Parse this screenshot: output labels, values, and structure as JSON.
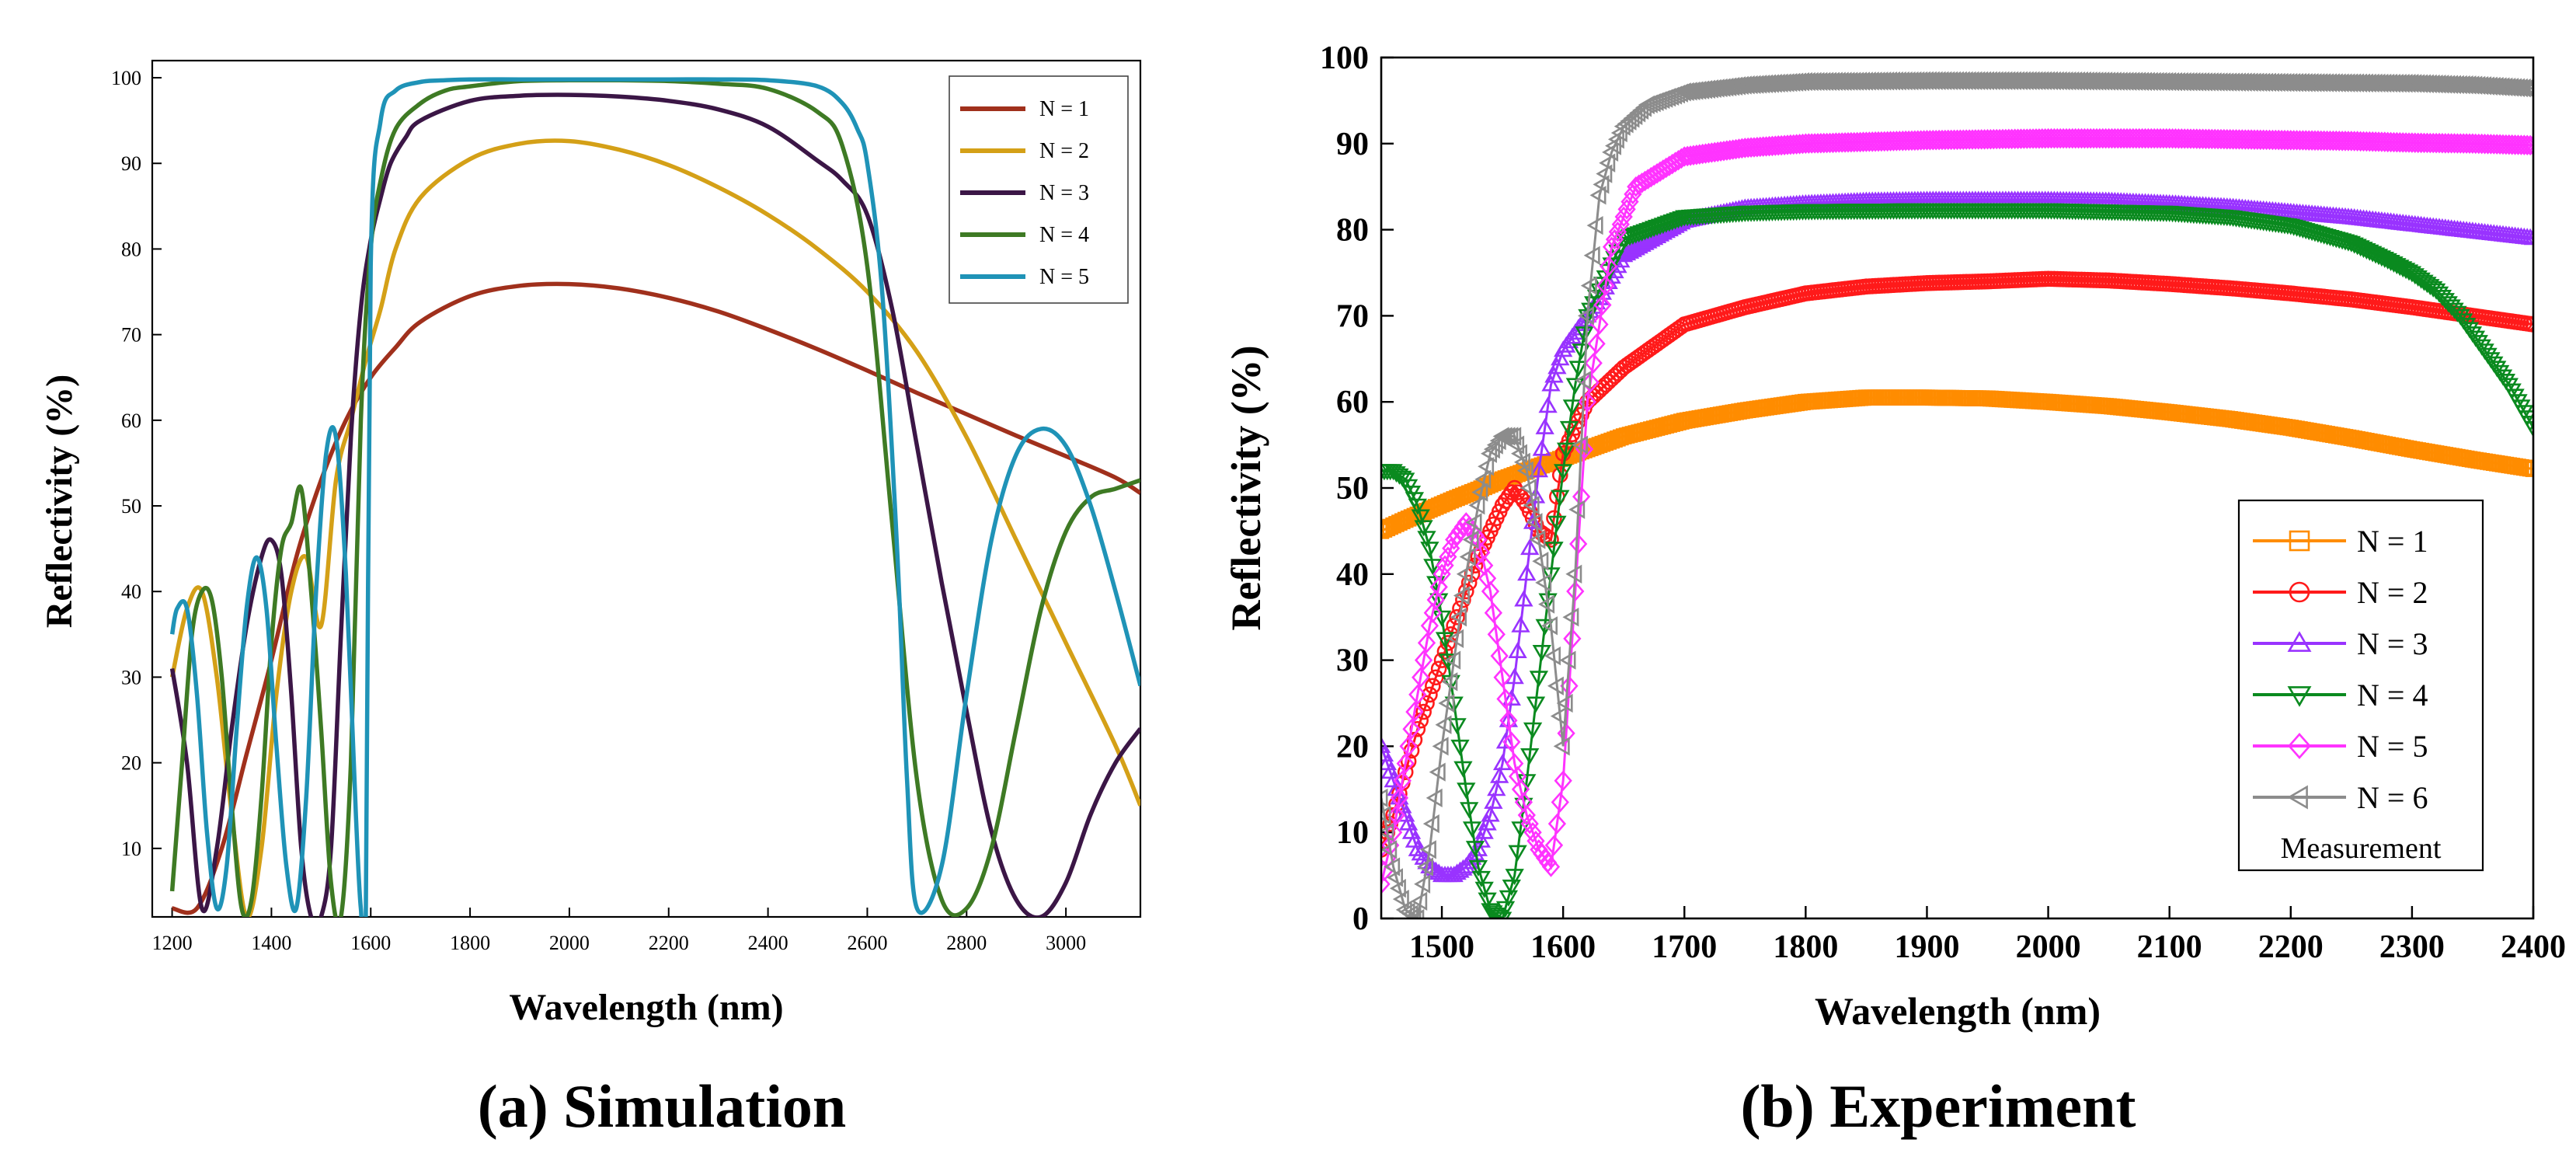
{
  "chart_data": [
    {
      "type": "line",
      "panel_label": "(a) Simulation",
      "xlabel": "Wavelength (nm)",
      "ylabel": "Reflectivity (%)",
      "xlim": [
        1160,
        3150
      ],
      "ylim": [
        2,
        102
      ],
      "xticks": [
        1200,
        1400,
        1600,
        1800,
        2000,
        2200,
        2400,
        2600,
        2800,
        3000
      ],
      "yticks": [
        10,
        20,
        30,
        40,
        50,
        60,
        70,
        80,
        90,
        100
      ],
      "grid": false,
      "legend_position": "top-right",
      "series": [
        {
          "name": "N = 1",
          "color": "#a0301c",
          "x": [
            1200,
            1250,
            1300,
            1350,
            1400,
            1450,
            1500,
            1550,
            1600,
            1650,
            1700,
            1800,
            1900,
            2000,
            2100,
            2200,
            2300,
            2400,
            2500,
            2600,
            2700,
            2800,
            2900,
            3000,
            3100,
            3150
          ],
          "y": [
            3,
            3,
            10,
            21,
            32,
            44,
            53,
            60,
            65,
            68.5,
            71.5,
            74.5,
            75.7,
            75.9,
            75.4,
            74.3,
            72.7,
            70.6,
            68.3,
            65.8,
            63.2,
            60.7,
            58.2,
            55.8,
            53.3,
            51.5
          ]
        },
        {
          "name": "N = 2",
          "color": "#d4a017",
          "x": [
            1200,
            1230,
            1260,
            1290,
            1320,
            1350,
            1380,
            1410,
            1440,
            1470,
            1500,
            1530,
            1560,
            1590,
            1620,
            1650,
            1700,
            1800,
            1900,
            2000,
            2100,
            2200,
            2300,
            2400,
            2500,
            2600,
            2700,
            2800,
            2900,
            3000,
            3100,
            3150
          ],
          "y": [
            30,
            38,
            40,
            30,
            14,
            2,
            10,
            28,
            40,
            44,
            36,
            53,
            60,
            67,
            73,
            80,
            86,
            90.5,
            92.3,
            92.6,
            91.6,
            89.8,
            87.2,
            84,
            80,
            75,
            68,
            58,
            46,
            34,
            22,
            15
          ]
        },
        {
          "name": "N = 3",
          "color": "#3b1646",
          "x": [
            1200,
            1230,
            1260,
            1290,
            1320,
            1350,
            1380,
            1400,
            1420,
            1440,
            1460,
            1480,
            1500,
            1520,
            1540,
            1560,
            1580,
            1600,
            1620,
            1640,
            1670,
            1700,
            1800,
            1900,
            2000,
            2100,
            2200,
            2300,
            2400,
            2500,
            2550,
            2600,
            2650,
            2700,
            2750,
            2800,
            2850,
            2900,
            2950,
            3000,
            3050,
            3100,
            3150
          ],
          "y": [
            31,
            20,
            3,
            10,
            24,
            36,
            44,
            46,
            42,
            28,
            10,
            2,
            2,
            10,
            35,
            58,
            73,
            81,
            86,
            90,
            93,
            95,
            97.3,
            97.9,
            98,
            97.8,
            97.3,
            96.3,
            94.3,
            90.3,
            88,
            84,
            73,
            57,
            41,
            26,
            12,
            4,
            2,
            6,
            14,
            20,
            24
          ]
        },
        {
          "name": "N = 4",
          "color": "#3e7a24",
          "x": [
            1200,
            1220,
            1240,
            1260,
            1280,
            1300,
            1320,
            1340,
            1360,
            1380,
            1400,
            1420,
            1440,
            1460,
            1480,
            1500,
            1520,
            1540,
            1560,
            1580,
            1600,
            1620,
            1650,
            1700,
            1750,
            1800,
            1900,
            2000,
            2100,
            2200,
            2300,
            2400,
            2500,
            2550,
            2600,
            2650,
            2700,
            2750,
            2800,
            2850,
            2900,
            2950,
            3000,
            3050,
            3100,
            3150
          ],
          "y": [
            5,
            20,
            35,
            40,
            39,
            30,
            15,
            3,
            4,
            16,
            34,
            45,
            48,
            52,
            40,
            24,
            6,
            2,
            20,
            60,
            80,
            88,
            94,
            97,
            98.5,
            99,
            99.6,
            99.7,
            99.7,
            99.6,
            99.3,
            98.7,
            96,
            92,
            78,
            48,
            18,
            4,
            3,
            10,
            24,
            38,
            47,
            51,
            52,
            53
          ]
        },
        {
          "name": "N = 5",
          "color": "#1f93b7",
          "x": [
            1200,
            1210,
            1230,
            1250,
            1270,
            1290,
            1310,
            1330,
            1350,
            1370,
            1390,
            1410,
            1430,
            1450,
            1470,
            1490,
            1510,
            1530,
            1550,
            1570,
            1580,
            1590,
            1600,
            1620,
            1650,
            1700,
            1750,
            1800,
            1900,
            2000,
            2100,
            2200,
            2300,
            2400,
            2500,
            2550,
            2580,
            2600,
            2630,
            2660,
            2680,
            2700,
            2750,
            2800,
            2850,
            2900,
            2950,
            3000,
            3050,
            3100,
            3150
          ],
          "y": [
            35,
            38,
            38,
            28,
            12,
            3,
            8,
            24,
            38,
            44,
            38,
            22,
            8,
            3,
            16,
            40,
            56,
            58,
            42,
            14,
            3,
            2,
            78,
            95,
            98.5,
            99.5,
            99.7,
            99.8,
            99.8,
            99.8,
            99.8,
            99.8,
            99.8,
            99.7,
            99,
            97,
            94,
            90,
            75,
            45,
            18,
            3,
            8,
            28,
            46,
            56,
            59,
            57,
            50,
            40,
            29
          ]
        }
      ]
    },
    {
      "type": "scatter",
      "panel_label": "(b) Experiment",
      "xlabel": "Wavelength (nm)",
      "ylabel": "Reflectivity (%)",
      "xlim": [
        1450,
        2400
      ],
      "ylim": [
        0,
        100
      ],
      "xticks": [
        1500,
        1600,
        1700,
        1800,
        1900,
        2000,
        2100,
        2200,
        2300,
        2400
      ],
      "yticks": [
        0,
        10,
        20,
        30,
        40,
        50,
        60,
        70,
        80,
        90,
        100
      ],
      "grid": false,
      "legend_position": "bottom-right",
      "legend_note": "Measurement",
      "series": [
        {
          "name": "N = 1",
          "color": "#ff8c00",
          "marker": "square",
          "x": [
            1450,
            1470,
            1490,
            1510,
            1530,
            1550,
            1570,
            1590,
            1620,
            1650,
            1700,
            1750,
            1800,
            1850,
            1900,
            1950,
            2000,
            2050,
            2100,
            2150,
            2200,
            2250,
            2300,
            2350,
            2400
          ],
          "y": [
            45,
            46.3,
            47.5,
            48.7,
            49.8,
            51,
            52,
            53,
            54.5,
            56,
            57.8,
            59,
            60,
            60.5,
            60.5,
            60.4,
            60,
            59.5,
            58.8,
            58,
            57,
            55.8,
            54.5,
            53.3,
            52.2
          ]
        },
        {
          "name": "N = 2",
          "color": "#ff1a1a",
          "marker": "circle",
          "x": [
            1450,
            1460,
            1470,
            1480,
            1490,
            1500,
            1510,
            1520,
            1530,
            1540,
            1550,
            1560,
            1570,
            1580,
            1590,
            1600,
            1620,
            1650,
            1700,
            1750,
            1800,
            1850,
            1900,
            1950,
            2000,
            2050,
            2100,
            2150,
            2200,
            2250,
            2300,
            2350,
            2400
          ],
          "y": [
            8,
            12,
            17,
            22,
            26,
            30,
            34,
            38,
            42,
            45,
            48,
            50,
            48,
            45,
            44,
            54,
            60,
            64,
            69,
            71,
            72.6,
            73.4,
            73.8,
            74,
            74.3,
            74.1,
            73.7,
            73.2,
            72.6,
            71.9,
            71,
            70,
            69
          ]
        },
        {
          "name": "N = 3",
          "color": "#9933ff",
          "marker": "triangle-up",
          "x": [
            1450,
            1460,
            1470,
            1480,
            1490,
            1500,
            1510,
            1520,
            1530,
            1540,
            1550,
            1560,
            1570,
            1580,
            1590,
            1600,
            1610,
            1630,
            1650,
            1700,
            1750,
            1800,
            1850,
            1900,
            1950,
            2000,
            2050,
            2100,
            2150,
            2200,
            2250,
            2300,
            2350,
            2400
          ],
          "y": [
            20,
            16,
            12,
            8,
            6,
            5,
            5,
            6,
            8,
            12,
            18,
            28,
            40,
            52,
            62,
            66,
            68,
            72,
            77,
            81,
            82.5,
            83,
            83.3,
            83.4,
            83.4,
            83.4,
            83.3,
            83,
            82.6,
            82,
            81.4,
            80.6,
            79.8,
            79
          ]
        },
        {
          "name": "N = 4",
          "color": "#0a8a1f",
          "marker": "triangle-down",
          "x": [
            1450,
            1460,
            1470,
            1480,
            1490,
            1500,
            1510,
            1520,
            1530,
            1540,
            1550,
            1560,
            1570,
            1580,
            1590,
            1600,
            1610,
            1620,
            1650,
            1700,
            1750,
            1800,
            1900,
            2000,
            2100,
            2150,
            2200,
            2250,
            2280,
            2300,
            2320,
            2340,
            2360,
            2380,
            2400
          ],
          "y": [
            52,
            52,
            51,
            48,
            43,
            35,
            25,
            15,
            6,
            1,
            0,
            5,
            16,
            28,
            40,
            52,
            62,
            70,
            79,
            81.5,
            82,
            82.2,
            82.3,
            82.3,
            82,
            81.5,
            80.5,
            78.5,
            76.5,
            75,
            73,
            70,
            66,
            62,
            57
          ]
        },
        {
          "name": "N = 5",
          "color": "#ff33ff",
          "marker": "diamond",
          "x": [
            1450,
            1460,
            1470,
            1480,
            1490,
            1500,
            1510,
            1520,
            1530,
            1540,
            1550,
            1560,
            1570,
            1580,
            1590,
            1600,
            1610,
            1620,
            1640,
            1660,
            1700,
            1750,
            1800,
            1850,
            1900,
            1950,
            2000,
            2050,
            2100,
            2150,
            2200,
            2250,
            2300,
            2350,
            2400
          ],
          "y": [
            4,
            10,
            18,
            26,
            34,
            40,
            44,
            46,
            44,
            38,
            28,
            18,
            12,
            8,
            6,
            16,
            38,
            60,
            78,
            85,
            88.5,
            89.5,
            90,
            90.2,
            90.4,
            90.5,
            90.6,
            90.6,
            90.6,
            90.5,
            90.4,
            90.3,
            90.1,
            90,
            89.8
          ]
        },
        {
          "name": "N = 6",
          "color": "#8c8c8c",
          "marker": "triangle-left",
          "x": [
            1450,
            1460,
            1470,
            1480,
            1490,
            1500,
            1510,
            1520,
            1530,
            1540,
            1550,
            1560,
            1570,
            1580,
            1590,
            1600,
            1610,
            1620,
            1630,
            1640,
            1650,
            1670,
            1700,
            1750,
            1800,
            1900,
            2000,
            2100,
            2200,
            2300,
            2350,
            2400
          ],
          "y": [
            14,
            6,
            1,
            0,
            8,
            20,
            30,
            40,
            48,
            54,
            56,
            56,
            52,
            44,
            34,
            20,
            40,
            70,
            84,
            89,
            92,
            94.5,
            96,
            96.8,
            97.2,
            97.3,
            97.3,
            97.2,
            97.1,
            97,
            96.8,
            96.4
          ]
        }
      ]
    }
  ]
}
